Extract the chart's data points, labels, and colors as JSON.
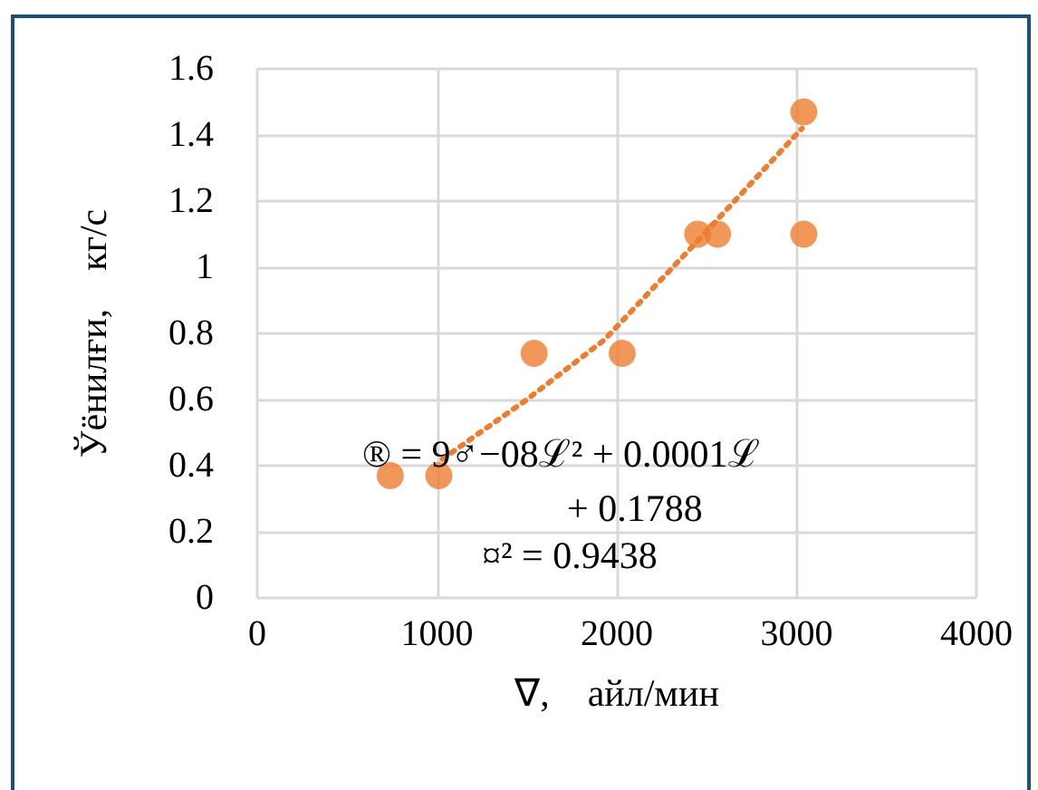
{
  "chart_data": {
    "type": "scatter",
    "xlabel": "∇,    айл/мин",
    "ylabel": "Ўёнилғи,    кг/с",
    "xlim": [
      0,
      4000
    ],
    "xticks": [
      0,
      1000,
      2000,
      3000,
      4000
    ],
    "ylim": [
      0,
      1.6
    ],
    "yticks": [
      0,
      0.2,
      0.4,
      0.6,
      0.8,
      {
        "value": 1,
        "label": "1"
      },
      1.2,
      1.4,
      1.6
    ],
    "grid": true,
    "marker": "circle",
    "series": [
      {
        "color": "#ed7d31",
        "x": [
          740,
          1010,
          1540,
          2030,
          2450,
          2560,
          3040,
          3040
        ],
        "values": [
          0.37,
          0.37,
          0.74,
          0.74,
          1.1,
          1.1,
          1.47,
          1.1
        ]
      },
      {
        "type": "line",
        "color": "#ed7d31",
        "line_style": "dotted",
        "marker": "none",
        "x": [
          1030,
          1500,
          1930,
          2450,
          3030
        ],
        "values": [
          0.42,
          0.6,
          0.78,
          1.08,
          1.42
        ]
      }
    ],
    "annotations": [
      "® = 9♂−08ℒ² + 0.0001ℒ",
      "+ 0.1788",
      "¤² = 0.9438"
    ]
  }
}
